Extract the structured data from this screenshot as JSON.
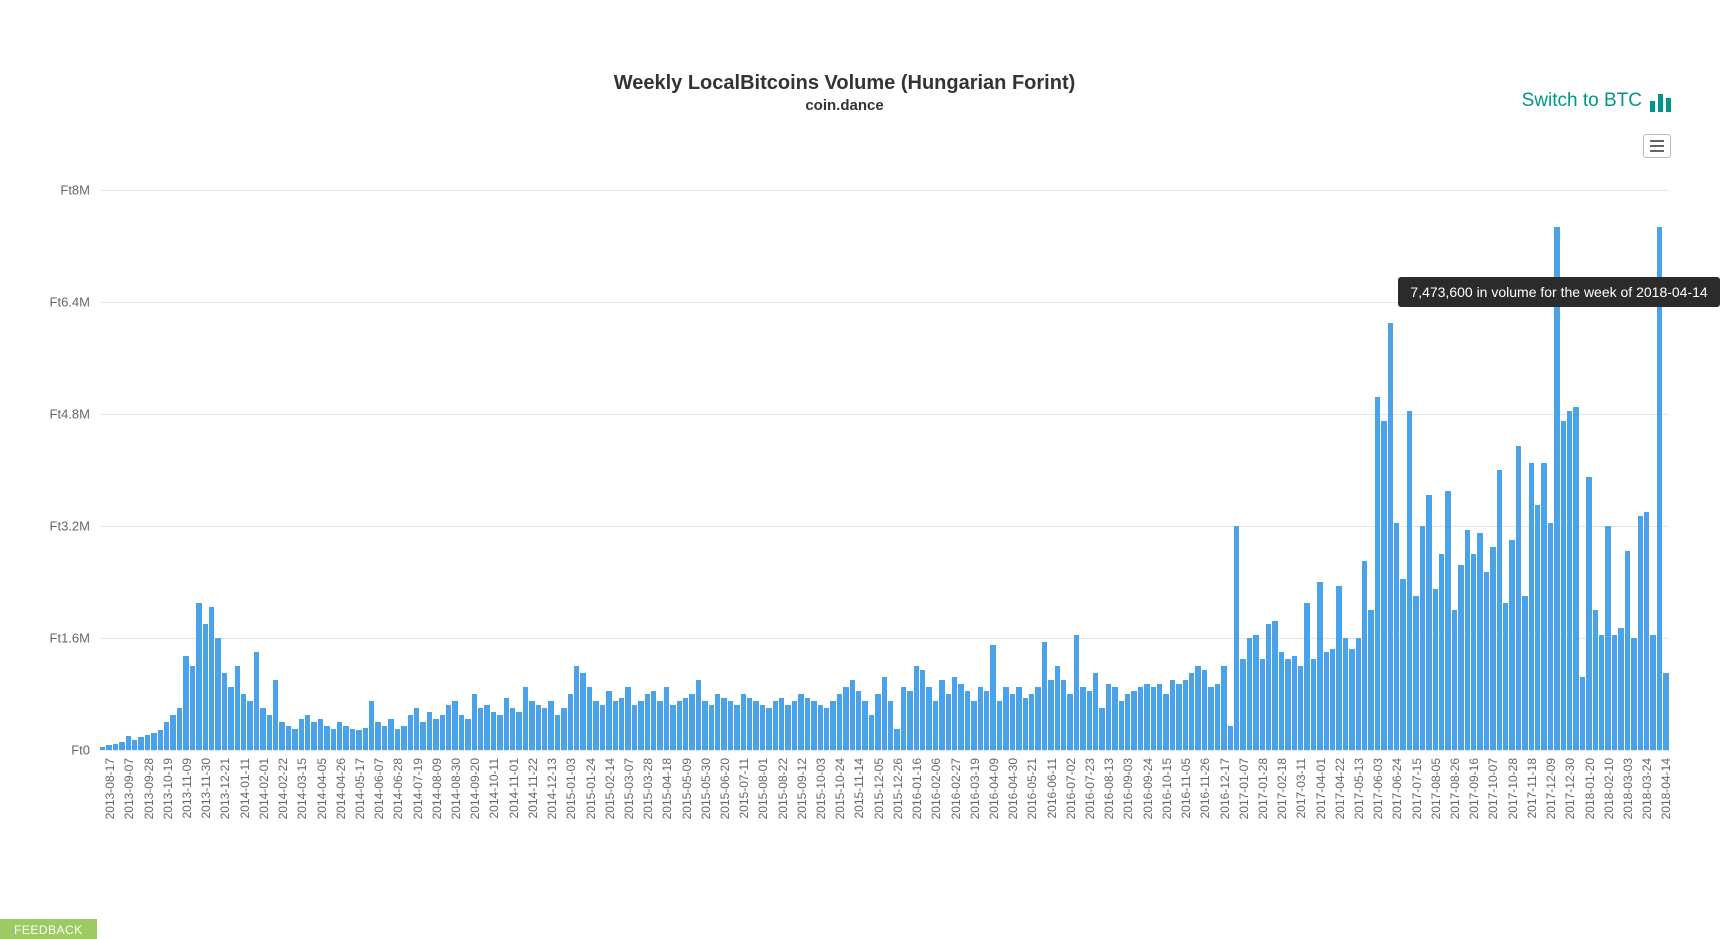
{
  "header": {
    "switch_label": "Switch to BTC",
    "switch_color": "#009688"
  },
  "chart": {
    "type": "bar",
    "title": "Weekly LocalBitcoins Volume (Hungarian Forint)",
    "subtitle": "coin.dance",
    "title_fontsize": 20,
    "subtitle_fontsize": 15,
    "bar_color": "#4aa3e8",
    "background_color": "#ffffff",
    "grid_color": "#e6e6e6",
    "text_color": "#666666",
    "ylim": [
      0,
      8000000
    ],
    "ytick_step": 1600000,
    "y_prefix": "Ft",
    "y_ticks": [
      "Ft0",
      "Ft1.6M",
      "Ft3.2M",
      "Ft4.8M",
      "Ft6.4M",
      "Ft8M"
    ],
    "x_label_interval": 3,
    "tooltip": {
      "text": "7,473,600 in volume for the week of 2018-04-14",
      "bar_index": 243,
      "bg": "#2b2b2b",
      "color": "#ffffff"
    },
    "feedback_label": "FEEDBACK",
    "feedback_bg": "#8bc34a",
    "series": [
      {
        "d": "2013-08-17",
        "v": 50000
      },
      {
        "d": "2013-08-24",
        "v": 70000
      },
      {
        "d": "2013-08-31",
        "v": 80000
      },
      {
        "d": "2013-09-07",
        "v": 120000
      },
      {
        "d": "2013-09-14",
        "v": 200000
      },
      {
        "d": "2013-09-21",
        "v": 150000
      },
      {
        "d": "2013-09-28",
        "v": 180000
      },
      {
        "d": "2013-10-05",
        "v": 220000
      },
      {
        "d": "2013-10-12",
        "v": 250000
      },
      {
        "d": "2013-10-19",
        "v": 280000
      },
      {
        "d": "2013-10-26",
        "v": 400000
      },
      {
        "d": "2013-11-02",
        "v": 500000
      },
      {
        "d": "2013-11-09",
        "v": 600000
      },
      {
        "d": "2013-11-16",
        "v": 1350000
      },
      {
        "d": "2013-11-23",
        "v": 1200000
      },
      {
        "d": "2013-11-30",
        "v": 2100000
      },
      {
        "d": "2013-12-07",
        "v": 1800000
      },
      {
        "d": "2013-12-14",
        "v": 2050000
      },
      {
        "d": "2013-12-21",
        "v": 1600000
      },
      {
        "d": "2013-12-28",
        "v": 1100000
      },
      {
        "d": "2014-01-04",
        "v": 900000
      },
      {
        "d": "2014-01-11",
        "v": 1200000
      },
      {
        "d": "2014-01-18",
        "v": 800000
      },
      {
        "d": "2014-01-25",
        "v": 700000
      },
      {
        "d": "2014-02-01",
        "v": 1400000
      },
      {
        "d": "2014-02-08",
        "v": 600000
      },
      {
        "d": "2014-02-15",
        "v": 500000
      },
      {
        "d": "2014-02-22",
        "v": 1000000
      },
      {
        "d": "2014-03-01",
        "v": 400000
      },
      {
        "d": "2014-03-08",
        "v": 350000
      },
      {
        "d": "2014-03-15",
        "v": 300000
      },
      {
        "d": "2014-03-22",
        "v": 450000
      },
      {
        "d": "2014-03-29",
        "v": 500000
      },
      {
        "d": "2014-04-05",
        "v": 400000
      },
      {
        "d": "2014-04-12",
        "v": 450000
      },
      {
        "d": "2014-04-19",
        "v": 350000
      },
      {
        "d": "2014-04-26",
        "v": 300000
      },
      {
        "d": "2014-05-03",
        "v": 400000
      },
      {
        "d": "2014-05-10",
        "v": 350000
      },
      {
        "d": "2014-05-17",
        "v": 300000
      },
      {
        "d": "2014-05-24",
        "v": 280000
      },
      {
        "d": "2014-05-31",
        "v": 320000
      },
      {
        "d": "2014-06-07",
        "v": 700000
      },
      {
        "d": "2014-06-14",
        "v": 400000
      },
      {
        "d": "2014-06-21",
        "v": 350000
      },
      {
        "d": "2014-06-28",
        "v": 450000
      },
      {
        "d": "2014-07-05",
        "v": 300000
      },
      {
        "d": "2014-07-12",
        "v": 350000
      },
      {
        "d": "2014-07-19",
        "v": 500000
      },
      {
        "d": "2014-07-26",
        "v": 600000
      },
      {
        "d": "2014-08-02",
        "v": 400000
      },
      {
        "d": "2014-08-09",
        "v": 550000
      },
      {
        "d": "2014-08-16",
        "v": 450000
      },
      {
        "d": "2014-08-23",
        "v": 500000
      },
      {
        "d": "2014-08-30",
        "v": 650000
      },
      {
        "d": "2014-09-06",
        "v": 700000
      },
      {
        "d": "2014-09-13",
        "v": 500000
      },
      {
        "d": "2014-09-20",
        "v": 450000
      },
      {
        "d": "2014-09-27",
        "v": 800000
      },
      {
        "d": "2014-10-04",
        "v": 600000
      },
      {
        "d": "2014-10-11",
        "v": 650000
      },
      {
        "d": "2014-10-18",
        "v": 550000
      },
      {
        "d": "2014-10-25",
        "v": 500000
      },
      {
        "d": "2014-11-01",
        "v": 750000
      },
      {
        "d": "2014-11-08",
        "v": 600000
      },
      {
        "d": "2014-11-15",
        "v": 550000
      },
      {
        "d": "2014-11-22",
        "v": 900000
      },
      {
        "d": "2014-11-29",
        "v": 700000
      },
      {
        "d": "2014-12-06",
        "v": 650000
      },
      {
        "d": "2014-12-13",
        "v": 600000
      },
      {
        "d": "2014-12-20",
        "v": 700000
      },
      {
        "d": "2014-12-27",
        "v": 500000
      },
      {
        "d": "2015-01-03",
        "v": 600000
      },
      {
        "d": "2015-01-10",
        "v": 800000
      },
      {
        "d": "2015-01-17",
        "v": 1200000
      },
      {
        "d": "2015-01-24",
        "v": 1100000
      },
      {
        "d": "2015-01-31",
        "v": 900000
      },
      {
        "d": "2015-02-07",
        "v": 700000
      },
      {
        "d": "2015-02-14",
        "v": 650000
      },
      {
        "d": "2015-02-21",
        "v": 850000
      },
      {
        "d": "2015-02-28",
        "v": 700000
      },
      {
        "d": "2015-03-07",
        "v": 750000
      },
      {
        "d": "2015-03-14",
        "v": 900000
      },
      {
        "d": "2015-03-21",
        "v": 650000
      },
      {
        "d": "2015-03-28",
        "v": 700000
      },
      {
        "d": "2015-04-04",
        "v": 800000
      },
      {
        "d": "2015-04-11",
        "v": 850000
      },
      {
        "d": "2015-04-18",
        "v": 700000
      },
      {
        "d": "2015-04-25",
        "v": 900000
      },
      {
        "d": "2015-05-02",
        "v": 650000
      },
      {
        "d": "2015-05-09",
        "v": 700000
      },
      {
        "d": "2015-05-16",
        "v": 750000
      },
      {
        "d": "2015-05-23",
        "v": 800000
      },
      {
        "d": "2015-05-30",
        "v": 1000000
      },
      {
        "d": "2015-06-06",
        "v": 700000
      },
      {
        "d": "2015-06-13",
        "v": 650000
      },
      {
        "d": "2015-06-20",
        "v": 800000
      },
      {
        "d": "2015-06-27",
        "v": 750000
      },
      {
        "d": "2015-07-04",
        "v": 700000
      },
      {
        "d": "2015-07-11",
        "v": 650000
      },
      {
        "d": "2015-07-18",
        "v": 800000
      },
      {
        "d": "2015-07-25",
        "v": 750000
      },
      {
        "d": "2015-08-01",
        "v": 700000
      },
      {
        "d": "2015-08-08",
        "v": 650000
      },
      {
        "d": "2015-08-15",
        "v": 600000
      },
      {
        "d": "2015-08-22",
        "v": 700000
      },
      {
        "d": "2015-08-29",
        "v": 750000
      },
      {
        "d": "2015-09-05",
        "v": 650000
      },
      {
        "d": "2015-09-12",
        "v": 700000
      },
      {
        "d": "2015-09-19",
        "v": 800000
      },
      {
        "d": "2015-09-26",
        "v": 750000
      },
      {
        "d": "2015-10-03",
        "v": 700000
      },
      {
        "d": "2015-10-10",
        "v": 650000
      },
      {
        "d": "2015-10-17",
        "v": 600000
      },
      {
        "d": "2015-10-24",
        "v": 700000
      },
      {
        "d": "2015-10-31",
        "v": 800000
      },
      {
        "d": "2015-11-07",
        "v": 900000
      },
      {
        "d": "2015-11-14",
        "v": 1000000
      },
      {
        "d": "2015-11-21",
        "v": 850000
      },
      {
        "d": "2015-11-28",
        "v": 700000
      },
      {
        "d": "2015-12-05",
        "v": 500000
      },
      {
        "d": "2015-12-12",
        "v": 800000
      },
      {
        "d": "2015-12-19",
        "v": 1050000
      },
      {
        "d": "2015-12-26",
        "v": 700000
      },
      {
        "d": "2016-01-02",
        "v": 300000
      },
      {
        "d": "2016-01-09",
        "v": 900000
      },
      {
        "d": "2016-01-16",
        "v": 850000
      },
      {
        "d": "2016-01-23",
        "v": 1200000
      },
      {
        "d": "2016-01-30",
        "v": 1150000
      },
      {
        "d": "2016-02-06",
        "v": 900000
      },
      {
        "d": "2016-02-13",
        "v": 700000
      },
      {
        "d": "2016-02-20",
        "v": 1000000
      },
      {
        "d": "2016-02-27",
        "v": 800000
      },
      {
        "d": "2016-03-05",
        "v": 1050000
      },
      {
        "d": "2016-03-12",
        "v": 950000
      },
      {
        "d": "2016-03-19",
        "v": 850000
      },
      {
        "d": "2016-03-26",
        "v": 700000
      },
      {
        "d": "2016-04-02",
        "v": 900000
      },
      {
        "d": "2016-04-09",
        "v": 850000
      },
      {
        "d": "2016-04-16",
        "v": 1500000
      },
      {
        "d": "2016-04-23",
        "v": 700000
      },
      {
        "d": "2016-04-30",
        "v": 900000
      },
      {
        "d": "2016-05-07",
        "v": 800000
      },
      {
        "d": "2016-05-14",
        "v": 900000
      },
      {
        "d": "2016-05-21",
        "v": 750000
      },
      {
        "d": "2016-05-28",
        "v": 800000
      },
      {
        "d": "2016-06-04",
        "v": 900000
      },
      {
        "d": "2016-06-11",
        "v": 1550000
      },
      {
        "d": "2016-06-18",
        "v": 1000000
      },
      {
        "d": "2016-06-25",
        "v": 1200000
      },
      {
        "d": "2016-07-02",
        "v": 1000000
      },
      {
        "d": "2016-07-09",
        "v": 800000
      },
      {
        "d": "2016-07-16",
        "v": 1650000
      },
      {
        "d": "2016-07-23",
        "v": 900000
      },
      {
        "d": "2016-07-30",
        "v": 850000
      },
      {
        "d": "2016-08-06",
        "v": 1100000
      },
      {
        "d": "2016-08-13",
        "v": 600000
      },
      {
        "d": "2016-08-20",
        "v": 950000
      },
      {
        "d": "2016-08-27",
        "v": 900000
      },
      {
        "d": "2016-09-03",
        "v": 700000
      },
      {
        "d": "2016-09-10",
        "v": 800000
      },
      {
        "d": "2016-09-17",
        "v": 850000
      },
      {
        "d": "2016-09-24",
        "v": 900000
      },
      {
        "d": "2016-10-01",
        "v": 950000
      },
      {
        "d": "2016-10-08",
        "v": 900000
      },
      {
        "d": "2016-10-15",
        "v": 950000
      },
      {
        "d": "2016-10-22",
        "v": 800000
      },
      {
        "d": "2016-10-29",
        "v": 1000000
      },
      {
        "d": "2016-11-05",
        "v": 950000
      },
      {
        "d": "2016-11-12",
        "v": 1000000
      },
      {
        "d": "2016-11-19",
        "v": 1100000
      },
      {
        "d": "2016-11-26",
        "v": 1200000
      },
      {
        "d": "2016-12-03",
        "v": 1150000
      },
      {
        "d": "2016-12-10",
        "v": 900000
      },
      {
        "d": "2016-12-17",
        "v": 950000
      },
      {
        "d": "2016-12-24",
        "v": 1200000
      },
      {
        "d": "2016-12-31",
        "v": 350000
      },
      {
        "d": "2017-01-07",
        "v": 3200000
      },
      {
        "d": "2017-01-14",
        "v": 1300000
      },
      {
        "d": "2017-01-21",
        "v": 1600000
      },
      {
        "d": "2017-01-28",
        "v": 1650000
      },
      {
        "d": "2017-02-04",
        "v": 1300000
      },
      {
        "d": "2017-02-11",
        "v": 1800000
      },
      {
        "d": "2017-02-18",
        "v": 1850000
      },
      {
        "d": "2017-02-25",
        "v": 1400000
      },
      {
        "d": "2017-03-04",
        "v": 1300000
      },
      {
        "d": "2017-03-11",
        "v": 1350000
      },
      {
        "d": "2017-03-18",
        "v": 1200000
      },
      {
        "d": "2017-03-25",
        "v": 2100000
      },
      {
        "d": "2017-04-01",
        "v": 1300000
      },
      {
        "d": "2017-04-08",
        "v": 2400000
      },
      {
        "d": "2017-04-15",
        "v": 1400000
      },
      {
        "d": "2017-04-22",
        "v": 1450000
      },
      {
        "d": "2017-04-29",
        "v": 2350000
      },
      {
        "d": "2017-05-06",
        "v": 1600000
      },
      {
        "d": "2017-05-13",
        "v": 1450000
      },
      {
        "d": "2017-05-20",
        "v": 1600000
      },
      {
        "d": "2017-05-27",
        "v": 2700000
      },
      {
        "d": "2017-06-03",
        "v": 2000000
      },
      {
        "d": "2017-06-10",
        "v": 5050000
      },
      {
        "d": "2017-06-17",
        "v": 4700000
      },
      {
        "d": "2017-06-24",
        "v": 6100000
      },
      {
        "d": "2017-07-01",
        "v": 3250000
      },
      {
        "d": "2017-07-08",
        "v": 2450000
      },
      {
        "d": "2017-07-15",
        "v": 4850000
      },
      {
        "d": "2017-07-22",
        "v": 2200000
      },
      {
        "d": "2017-07-29",
        "v": 3200000
      },
      {
        "d": "2017-08-05",
        "v": 3650000
      },
      {
        "d": "2017-08-12",
        "v": 2300000
      },
      {
        "d": "2017-08-19",
        "v": 2800000
      },
      {
        "d": "2017-08-26",
        "v": 3700000
      },
      {
        "d": "2017-09-02",
        "v": 2000000
      },
      {
        "d": "2017-09-09",
        "v": 2650000
      },
      {
        "d": "2017-09-16",
        "v": 3150000
      },
      {
        "d": "2017-09-23",
        "v": 2800000
      },
      {
        "d": "2017-09-30",
        "v": 3100000
      },
      {
        "d": "2017-10-07",
        "v": 2550000
      },
      {
        "d": "2017-10-14",
        "v": 2900000
      },
      {
        "d": "2017-10-21",
        "v": 4000000
      },
      {
        "d": "2017-10-28",
        "v": 2100000
      },
      {
        "d": "2017-11-04",
        "v": 3000000
      },
      {
        "d": "2017-11-11",
        "v": 4350000
      },
      {
        "d": "2017-11-18",
        "v": 2200000
      },
      {
        "d": "2017-11-25",
        "v": 4100000
      },
      {
        "d": "2017-12-02",
        "v": 3500000
      },
      {
        "d": "2017-12-09",
        "v": 4100000
      },
      {
        "d": "2017-12-16",
        "v": 3250000
      },
      {
        "d": "2017-12-23",
        "v": 7473600
      },
      {
        "d": "2017-12-30",
        "v": 4700000
      },
      {
        "d": "2018-01-06",
        "v": 4850000
      },
      {
        "d": "2018-01-13",
        "v": 4900000
      },
      {
        "d": "2018-01-20",
        "v": 1050000
      },
      {
        "d": "2018-01-27",
        "v": 3900000
      },
      {
        "d": "2018-02-03",
        "v": 2000000
      },
      {
        "d": "2018-02-10",
        "v": 1650000
      },
      {
        "d": "2018-02-17",
        "v": 3200000
      },
      {
        "d": "2018-02-24",
        "v": 1650000
      },
      {
        "d": "2018-03-03",
        "v": 1750000
      },
      {
        "d": "2018-03-10",
        "v": 2850000
      },
      {
        "d": "2018-03-17",
        "v": 1600000
      },
      {
        "d": "2018-03-24",
        "v": 3350000
      },
      {
        "d": "2018-03-31",
        "v": 3400000
      },
      {
        "d": "2018-04-07",
        "v": 1650000
      },
      {
        "d": "2018-04-14",
        "v": 7473600
      },
      {
        "d": "2018-04-21",
        "v": 1100000
      }
    ]
  }
}
